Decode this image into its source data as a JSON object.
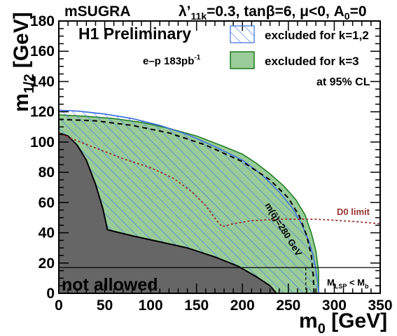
{
  "header": {
    "model": "mSUGRA",
    "params_prefix": "λ’",
    "params_sub": "11k",
    "params_rest": "=0.3, tanβ=6, μ<0, A",
    "params_sub2": "0",
    "params_end": "=0"
  },
  "annotations": {
    "preliminary": "H1 Preliminary",
    "lumi_main": "e–p 183pb",
    "lumi_sup": "-1",
    "cl": "at 95% CL",
    "not_allowed": "not allowed",
    "d0_limit": "D0 limit",
    "squark_mass": "m(q̃)=280 GeV",
    "lsp_main": "M",
    "lsp_sub": "LSP",
    "lsp_mid": " < M",
    "lsp_sub2": "b"
  },
  "axes": {
    "xlabel_main": "m",
    "xlabel_sub": "0",
    "xlabel_unit": " [GeV]",
    "ylabel_main": "m",
    "ylabel_sub": "1/2",
    "ylabel_unit": " [GeV]"
  },
  "legend": {
    "items": [
      {
        "label": "excluded for k=1,2",
        "style": "hatched",
        "color": "#3b6fe0"
      },
      {
        "label": "excluded for k=3",
        "style": "filled",
        "color": "#99cc99",
        "edge": "#1a7a1a"
      }
    ]
  },
  "chart_data": {
    "type": "area",
    "xlim": [
      0,
      350
    ],
    "ylim": [
      0,
      180
    ],
    "xticks": [
      0,
      50,
      100,
      150,
      200,
      250,
      300,
      350
    ],
    "yticks": [
      0,
      20,
      40,
      60,
      80,
      100,
      120,
      140,
      160,
      180
    ],
    "colors": {
      "not_allowed": "#666666",
      "k3_fill": "#99cc99",
      "k3_edge": "#1a7a1a",
      "k12_hatch": "#3b6fe0",
      "d0": "#993333"
    },
    "series": [
      {
        "name": "excluded for k=1,2",
        "points": [
          [
            0,
            121
          ],
          [
            20,
            120.5
          ],
          [
            50,
            118.5
          ],
          [
            80,
            115.5
          ],
          [
            110,
            111
          ],
          [
            140,
            105
          ],
          [
            170,
            97
          ],
          [
            200,
            88
          ],
          [
            220,
            79
          ],
          [
            240,
            67
          ],
          [
            255,
            56
          ],
          [
            265,
            45
          ],
          [
            272,
            35
          ],
          [
            277,
            25
          ],
          [
            280,
            15
          ],
          [
            282,
            7
          ],
          [
            283,
            0
          ]
        ]
      },
      {
        "name": "excluded for k=3",
        "points": [
          [
            0,
            118
          ],
          [
            30,
            117
          ],
          [
            60,
            115.5
          ],
          [
            90,
            113
          ],
          [
            120,
            109
          ],
          [
            150,
            104
          ],
          [
            180,
            97
          ],
          [
            200,
            92
          ],
          [
            215,
            86
          ],
          [
            230,
            79
          ],
          [
            245,
            71
          ],
          [
            258,
            62
          ],
          [
            268,
            52
          ],
          [
            275,
            40
          ],
          [
            280,
            28
          ],
          [
            283,
            14
          ],
          [
            283,
            0
          ]
        ]
      },
      {
        "name": "not allowed",
        "points": [
          [
            0,
            106
          ],
          [
            10,
            104
          ],
          [
            20,
            98
          ],
          [
            30,
            88
          ],
          [
            40,
            72
          ],
          [
            48,
            56
          ],
          [
            53,
            42
          ],
          [
            80,
            38
          ],
          [
            110,
            34
          ],
          [
            140,
            30
          ],
          [
            170,
            24
          ],
          [
            195,
            18
          ],
          [
            215,
            11
          ],
          [
            230,
            5
          ],
          [
            237,
            0
          ]
        ]
      },
      {
        "name": "m(q̃)=280 GeV",
        "points": [
          [
            0,
            115
          ],
          [
            40,
            114
          ],
          [
            80,
            111
          ],
          [
            120,
            106
          ],
          [
            160,
            98
          ],
          [
            200,
            87
          ],
          [
            230,
            75
          ],
          [
            250,
            63
          ],
          [
            262,
            51
          ],
          [
            270,
            38
          ],
          [
            275,
            25
          ],
          [
            277,
            12
          ],
          [
            278,
            0
          ]
        ]
      },
      {
        "name": "D0 limit",
        "points": [
          [
            0,
            106
          ],
          [
            15,
            102
          ],
          [
            40,
            96
          ],
          [
            70,
            89
          ],
          [
            100,
            83
          ],
          [
            125,
            76
          ],
          [
            145,
            67
          ],
          [
            160,
            58
          ],
          [
            172,
            48
          ],
          [
            178,
            44
          ],
          [
            190,
            46
          ],
          [
            210,
            48
          ],
          [
            240,
            49
          ],
          [
            280,
            49
          ],
          [
            320,
            47.5
          ],
          [
            350,
            46
          ]
        ]
      }
    ],
    "lsp_boundary": {
      "x": 269,
      "y": 17
    }
  }
}
